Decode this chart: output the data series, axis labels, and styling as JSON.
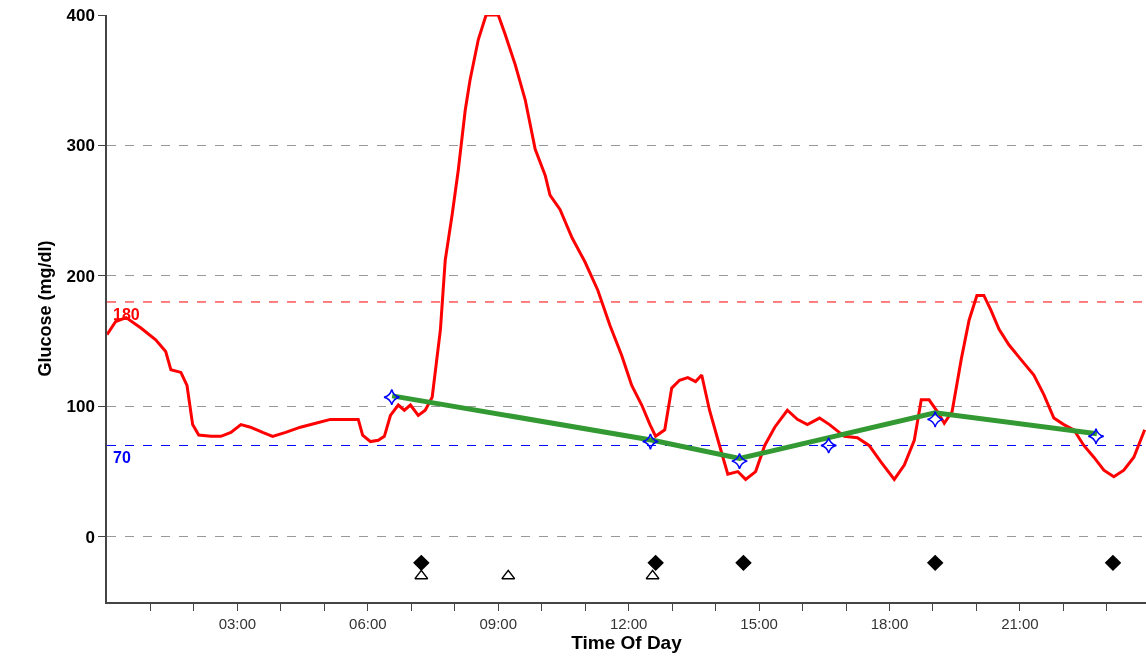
{
  "chart_data": {
    "type": "line",
    "xlabel": "Time Of Day",
    "ylabel": "Glucose (mg/dl)",
    "xlim": [
      0,
      23.9
    ],
    "ylim": [
      -50,
      400
    ],
    "xticks": [
      {
        "value": 1,
        "label": null
      },
      {
        "value": 2,
        "label": null
      },
      {
        "value": 3,
        "label": "03:00"
      },
      {
        "value": 4,
        "label": null
      },
      {
        "value": 5,
        "label": null
      },
      {
        "value": 6,
        "label": "06:00"
      },
      {
        "value": 7,
        "label": null
      },
      {
        "value": 8,
        "label": null
      },
      {
        "value": 9,
        "label": "09:00"
      },
      {
        "value": 10,
        "label": null
      },
      {
        "value": 11,
        "label": null
      },
      {
        "value": 12,
        "label": "12:00"
      },
      {
        "value": 13,
        "label": null
      },
      {
        "value": 14,
        "label": null
      },
      {
        "value": 15,
        "label": "15:00"
      },
      {
        "value": 16,
        "label": null
      },
      {
        "value": 17,
        "label": null
      },
      {
        "value": 18,
        "label": "18:00"
      },
      {
        "value": 19,
        "label": null
      },
      {
        "value": 20,
        "label": null
      },
      {
        "value": 21,
        "label": "21:00"
      },
      {
        "value": 22,
        "label": null
      },
      {
        "value": 23,
        "label": null
      }
    ],
    "yticks": [
      0,
      100,
      200,
      300,
      400
    ],
    "grid": "y",
    "line_style": "solid",
    "marker": "none",
    "ref_lines": [
      {
        "axis": "y",
        "value": 180,
        "label": "180",
        "color": "#ff0000",
        "line_style": "dashed"
      },
      {
        "axis": "y",
        "value": 70,
        "label": "70",
        "color": "#0000ff",
        "line_style": "dashed"
      }
    ],
    "series": [
      {
        "color": "#ff0000",
        "x": [
          0,
          0.2,
          0.44,
          0.78,
          1.12,
          1.35,
          1.47,
          1.7,
          1.84,
          1.97,
          2.11,
          2.39,
          2.62,
          2.85,
          3.08,
          3.3,
          3.58,
          3.81,
          4.11,
          4.45,
          4.8,
          5.14,
          5.37,
          5.6,
          5.78,
          5.88,
          6.06,
          6.24,
          6.38,
          6.52,
          6.7,
          6.84,
          6.98,
          7.16,
          7.32,
          7.48,
          7.67,
          7.78,
          7.94,
          8.08,
          8.24,
          8.35,
          8.54,
          8.72,
          9.0,
          9.16,
          9.39,
          9.62,
          9.85,
          10.08,
          10.19,
          10.42,
          10.7,
          10.99,
          11.29,
          11.57,
          11.84,
          12.07,
          12.3,
          12.49,
          12.62,
          12.83,
          12.99,
          13.17,
          13.36,
          13.54,
          13.68,
          13.86,
          14.09,
          14.28,
          14.51,
          14.69,
          14.92,
          15.13,
          15.36,
          15.65,
          15.88,
          16.11,
          16.39,
          16.62,
          16.96,
          17.26,
          17.53,
          17.81,
          18.11,
          18.34,
          18.57,
          18.73,
          18.91,
          19.1,
          19.26,
          19.44,
          19.65,
          19.83,
          20.01,
          20.17,
          20.33,
          20.52,
          20.75,
          21.02,
          21.32,
          21.55,
          21.78,
          22.01,
          22.24,
          22.47,
          22.7,
          22.93,
          23.16,
          23.39,
          23.62,
          23.87
        ],
        "values": [
          155,
          165,
          168,
          160,
          151,
          142,
          128,
          126,
          116,
          86,
          78,
          77,
          77,
          80,
          86,
          84,
          80,
          77,
          80,
          84,
          87,
          90,
          90,
          90,
          90,
          78,
          73,
          74,
          77,
          93,
          101,
          97,
          101,
          93,
          97,
          107,
          159,
          212,
          247,
          281,
          327,
          350,
          381,
          400,
          400,
          385,
          362,
          335,
          297,
          277,
          262,
          251,
          229,
          211,
          189,
          162,
          139,
          116,
          101,
          86,
          77,
          82,
          114,
          120,
          122,
          119,
          124,
          97,
          70,
          48,
          50,
          44,
          50,
          70,
          84,
          97,
          90,
          86,
          91,
          86,
          77,
          76,
          70,
          57,
          44,
          55,
          74,
          105,
          105,
          96,
          87,
          96,
          136,
          166,
          185,
          185,
          174,
          159,
          147,
          136,
          124,
          109,
          91,
          86,
          82,
          70,
          61,
          51,
          46,
          51,
          61,
          82
        ]
      },
      {
        "color": "#339933",
        "x": [
          6.56,
          12.55,
          14.55,
          19.05,
          22.77
        ],
        "values": [
          108,
          74,
          60,
          95,
          79
        ]
      },
      {
        "type": "scatter",
        "marker": "star",
        "color": "#0000ff",
        "x": [
          6.55,
          12.5,
          14.55,
          16.6,
          19.05,
          22.75
        ],
        "values": [
          107,
          73,
          58,
          70,
          90,
          77
        ]
      },
      {
        "type": "scatter",
        "marker": "diamond",
        "color": "#000000",
        "x": [
          7.23,
          12.62,
          14.64,
          19.05,
          23.14
        ],
        "values": [
          -20,
          -20,
          -20,
          -20,
          -20
        ]
      },
      {
        "type": "scatter",
        "marker": "triangle",
        "color": "#000000",
        "x": [
          7.23,
          9.23,
          12.55
        ],
        "values": [
          -30,
          -30,
          -30
        ]
      }
    ]
  }
}
